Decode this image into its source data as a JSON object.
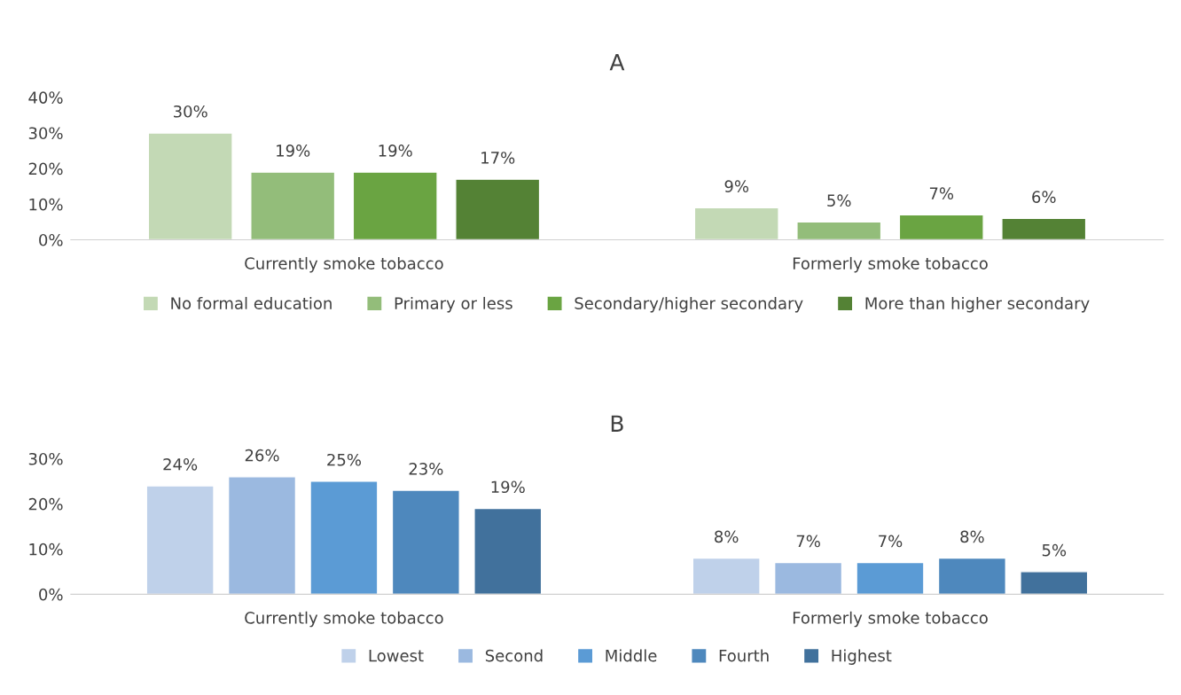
{
  "chart_data": [
    {
      "type": "bar",
      "title": "A",
      "categories": [
        "Currently smoke tobacco",
        "Formerly smoke tobacco"
      ],
      "ylim": [
        0,
        40
      ],
      "yticks": [
        {
          "value": 0,
          "label": "0%"
        },
        {
          "value": 10,
          "label": "10%"
        },
        {
          "value": 20,
          "label": "20%"
        },
        {
          "value": 30,
          "label": "30%"
        },
        {
          "value": 40,
          "label": "40%"
        }
      ],
      "grid": false,
      "legend": "bottom",
      "series": [
        {
          "name": "No formal education",
          "color": "#c3d9b5",
          "values": [
            30,
            9
          ],
          "value_labels": [
            "30%",
            "9%"
          ]
        },
        {
          "name": "Primary or less",
          "color": "#93bd7a",
          "values": [
            19,
            5
          ],
          "value_labels": [
            "19%",
            "5%"
          ]
        },
        {
          "name": "Secondary/higher secondary",
          "color": "#6aa442",
          "values": [
            19,
            7
          ],
          "value_labels": [
            "19%",
            "7%"
          ]
        },
        {
          "name": "More than higher secondary",
          "color": "#548235",
          "values": [
            17,
            6
          ],
          "value_labels": [
            "17%",
            "6%"
          ]
        }
      ]
    },
    {
      "type": "bar",
      "title": "B",
      "categories": [
        "Currently smoke tobacco",
        "Formerly smoke tobacco"
      ],
      "ylim": [
        0,
        30
      ],
      "yticks": [
        {
          "value": 0,
          "label": "0%"
        },
        {
          "value": 10,
          "label": "10%"
        },
        {
          "value": 20,
          "label": "20%"
        },
        {
          "value": 30,
          "label": "30%"
        }
      ],
      "grid": false,
      "legend": "bottom",
      "series": [
        {
          "name": "Lowest",
          "color": "#bfd1ea",
          "values": [
            24,
            8
          ],
          "value_labels": [
            "24%",
            "8%"
          ]
        },
        {
          "name": "Second",
          "color": "#9bb9e0",
          "values": [
            26,
            7
          ],
          "value_labels": [
            "26%",
            "7%"
          ]
        },
        {
          "name": "Middle",
          "color": "#5b9bd5",
          "values": [
            25,
            7
          ],
          "value_labels": [
            "25%",
            "7%"
          ]
        },
        {
          "name": "Fourth",
          "color": "#4e88bd",
          "values": [
            23,
            8
          ],
          "value_labels": [
            "23%",
            "8%"
          ]
        },
        {
          "name": "Highest",
          "color": "#41719c",
          "values": [
            19,
            5
          ],
          "value_labels": [
            "19%",
            "5%"
          ]
        }
      ]
    }
  ]
}
